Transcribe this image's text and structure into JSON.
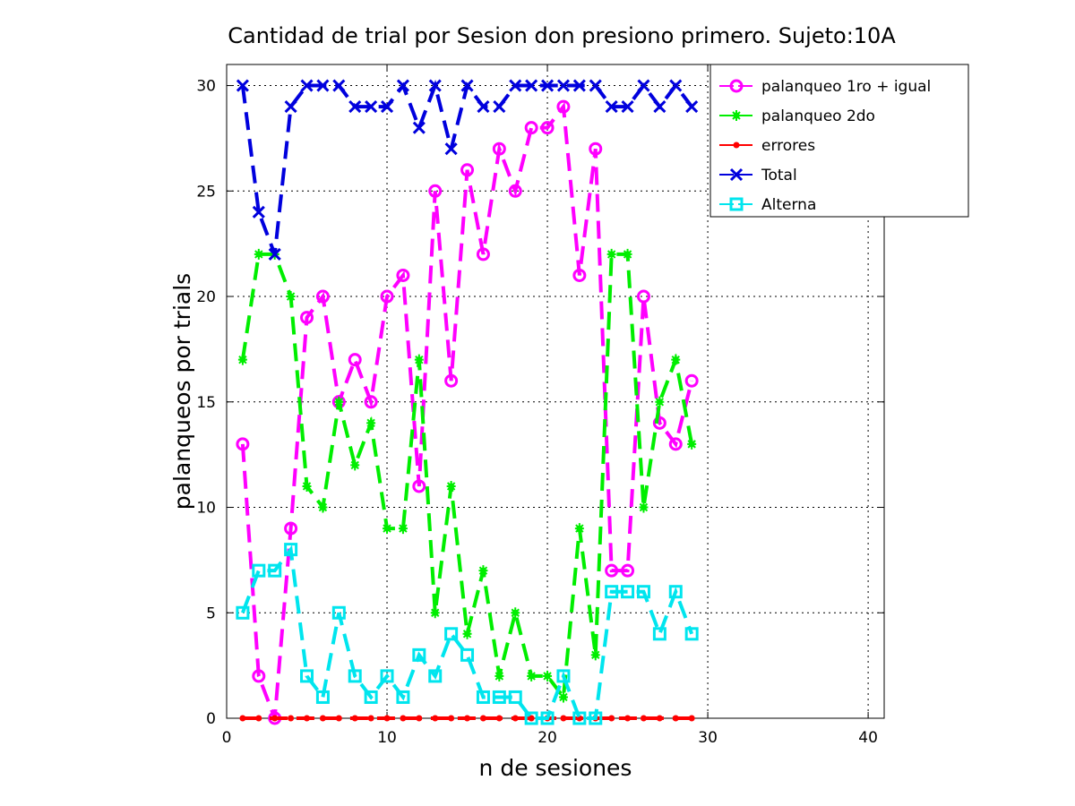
{
  "chart_data": {
    "type": "line",
    "title": "Cantidad de trial por Sesion don presiono primero. Sujeto:10A",
    "xlabel": "n de sesiones",
    "ylabel": "palanqueos por trials",
    "xlim": [
      0,
      41
    ],
    "ylim": [
      0,
      31
    ],
    "xticks": [
      0,
      10,
      20,
      30,
      40
    ],
    "yticks": [
      0,
      5,
      10,
      15,
      20,
      25,
      30
    ],
    "grid": true,
    "legend_position": "top-right",
    "x": [
      1,
      2,
      3,
      4,
      5,
      6,
      7,
      8,
      9,
      10,
      11,
      12,
      13,
      14,
      15,
      16,
      17,
      18,
      19,
      20,
      21,
      22,
      23,
      24,
      25,
      26,
      27,
      28,
      29
    ],
    "series": [
      {
        "name": "palanqueo 1ro + igual",
        "color": "#ff00ff",
        "marker": "circle",
        "values": [
          13,
          2,
          0,
          9,
          19,
          20,
          15,
          17,
          15,
          20,
          21,
          11,
          25,
          16,
          26,
          22,
          27,
          25,
          28,
          28,
          29,
          21,
          27,
          7,
          7,
          20,
          14,
          13,
          16
        ]
      },
      {
        "name": "palanqueo 2do",
        "color": "#00ee00",
        "marker": "asterisk",
        "values": [
          17,
          22,
          22,
          20,
          11,
          10,
          15,
          12,
          14,
          9,
          9,
          17,
          5,
          11,
          4,
          7,
          2,
          5,
          2,
          2,
          1,
          9,
          3,
          22,
          22,
          10,
          15,
          17,
          13
        ]
      },
      {
        "name": "errores",
        "color": "#ff0000",
        "marker": "dot",
        "values": [
          0,
          0,
          0,
          0,
          0,
          0,
          0,
          0,
          0,
          0,
          0,
          0,
          0,
          0,
          0,
          0,
          0,
          0,
          0,
          0,
          0,
          0,
          0,
          0,
          0,
          0,
          0,
          0,
          0
        ]
      },
      {
        "name": "Total",
        "color": "#0000dd",
        "marker": "x",
        "values": [
          30,
          24,
          22,
          29,
          30,
          30,
          30,
          29,
          29,
          29,
          30,
          28,
          30,
          27,
          30,
          29,
          29,
          30,
          30,
          30,
          30,
          30,
          30,
          29,
          29,
          30,
          29,
          30,
          29
        ]
      },
      {
        "name": "Alterna",
        "color": "#00e5ee",
        "marker": "square",
        "values": [
          5,
          7,
          7,
          8,
          2,
          1,
          5,
          2,
          1,
          2,
          1,
          3,
          2,
          4,
          3,
          1,
          1,
          1,
          0,
          0,
          2,
          0,
          0,
          6,
          6,
          6,
          4,
          6,
          4
        ]
      }
    ]
  }
}
